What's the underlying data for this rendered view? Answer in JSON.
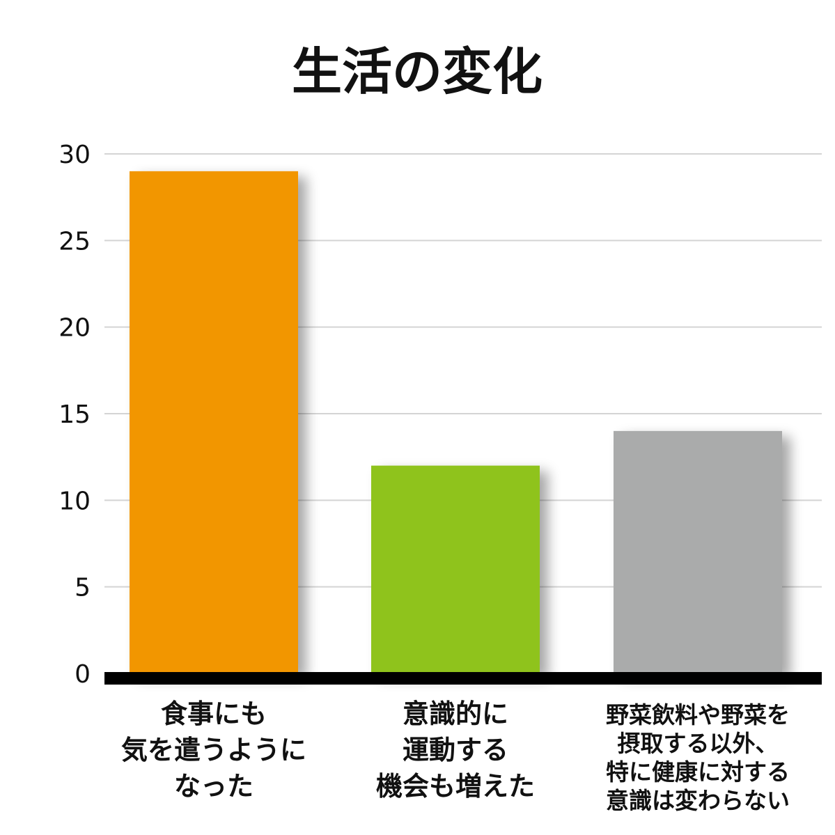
{
  "chart_data": {
    "type": "bar",
    "title": "生活の変化",
    "xlabel": "",
    "ylabel": "",
    "ylim": [
      0,
      30
    ],
    "yticks": [
      0,
      5,
      10,
      15,
      20,
      25,
      30
    ],
    "grid": true,
    "legend": "none",
    "categories": [
      [
        "食事にも",
        "気を遣うように",
        "なった"
      ],
      [
        "意識的に",
        "運動する",
        "機会も増えた"
      ],
      [
        "野菜飲料や野菜を",
        "摂取する以外、",
        "特に健康に対する",
        "意識は変わらない"
      ]
    ],
    "values": [
      29,
      12,
      14
    ],
    "colors": [
      "#f29600",
      "#8fc31f",
      "#aaabab"
    ]
  }
}
